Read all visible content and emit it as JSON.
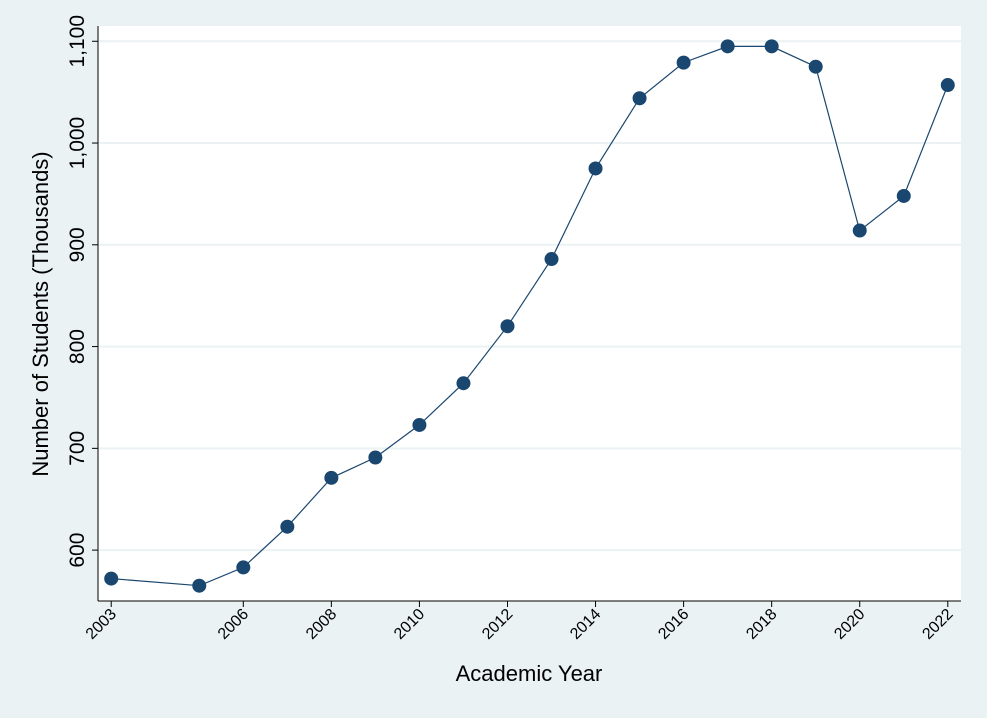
{
  "chart_data": {
    "type": "line",
    "title": "",
    "xlabel": "Academic Year",
    "ylabel": "Number of Students (Thousands)",
    "x": [
      2003,
      2005,
      2006,
      2007,
      2008,
      2009,
      2010,
      2011,
      2012,
      2013,
      2014,
      2015,
      2016,
      2017,
      2018,
      2019,
      2020,
      2021,
      2022
    ],
    "y": [
      572,
      565,
      583,
      623,
      671,
      691,
      723,
      764,
      820,
      886,
      975,
      1044,
      1079,
      1095,
      1095,
      1075,
      914,
      948,
      1057
    ],
    "xticks": [
      2003,
      2006,
      2008,
      2010,
      2012,
      2014,
      2016,
      2018,
      2020,
      2022
    ],
    "xtick_labels": [
      "2003",
      "2006",
      "2008",
      "2010",
      "2012",
      "2014",
      "2016",
      "2018",
      "2020",
      "2022"
    ],
    "yticks": [
      600,
      700,
      800,
      900,
      1000,
      1100
    ],
    "ytick_labels": [
      "600",
      "700",
      "800",
      "900",
      "1,000",
      "1,100"
    ],
    "xlim": [
      2002.7,
      2022.3
    ],
    "ylim": [
      550,
      1115
    ],
    "grid": "horizontal",
    "legend": "none",
    "colors": {
      "background": "#eaf2f3",
      "plot_area": "#ffffff",
      "gridline": "#eaf2f3",
      "line": "#1a476f",
      "marker": "#1a476f"
    }
  }
}
